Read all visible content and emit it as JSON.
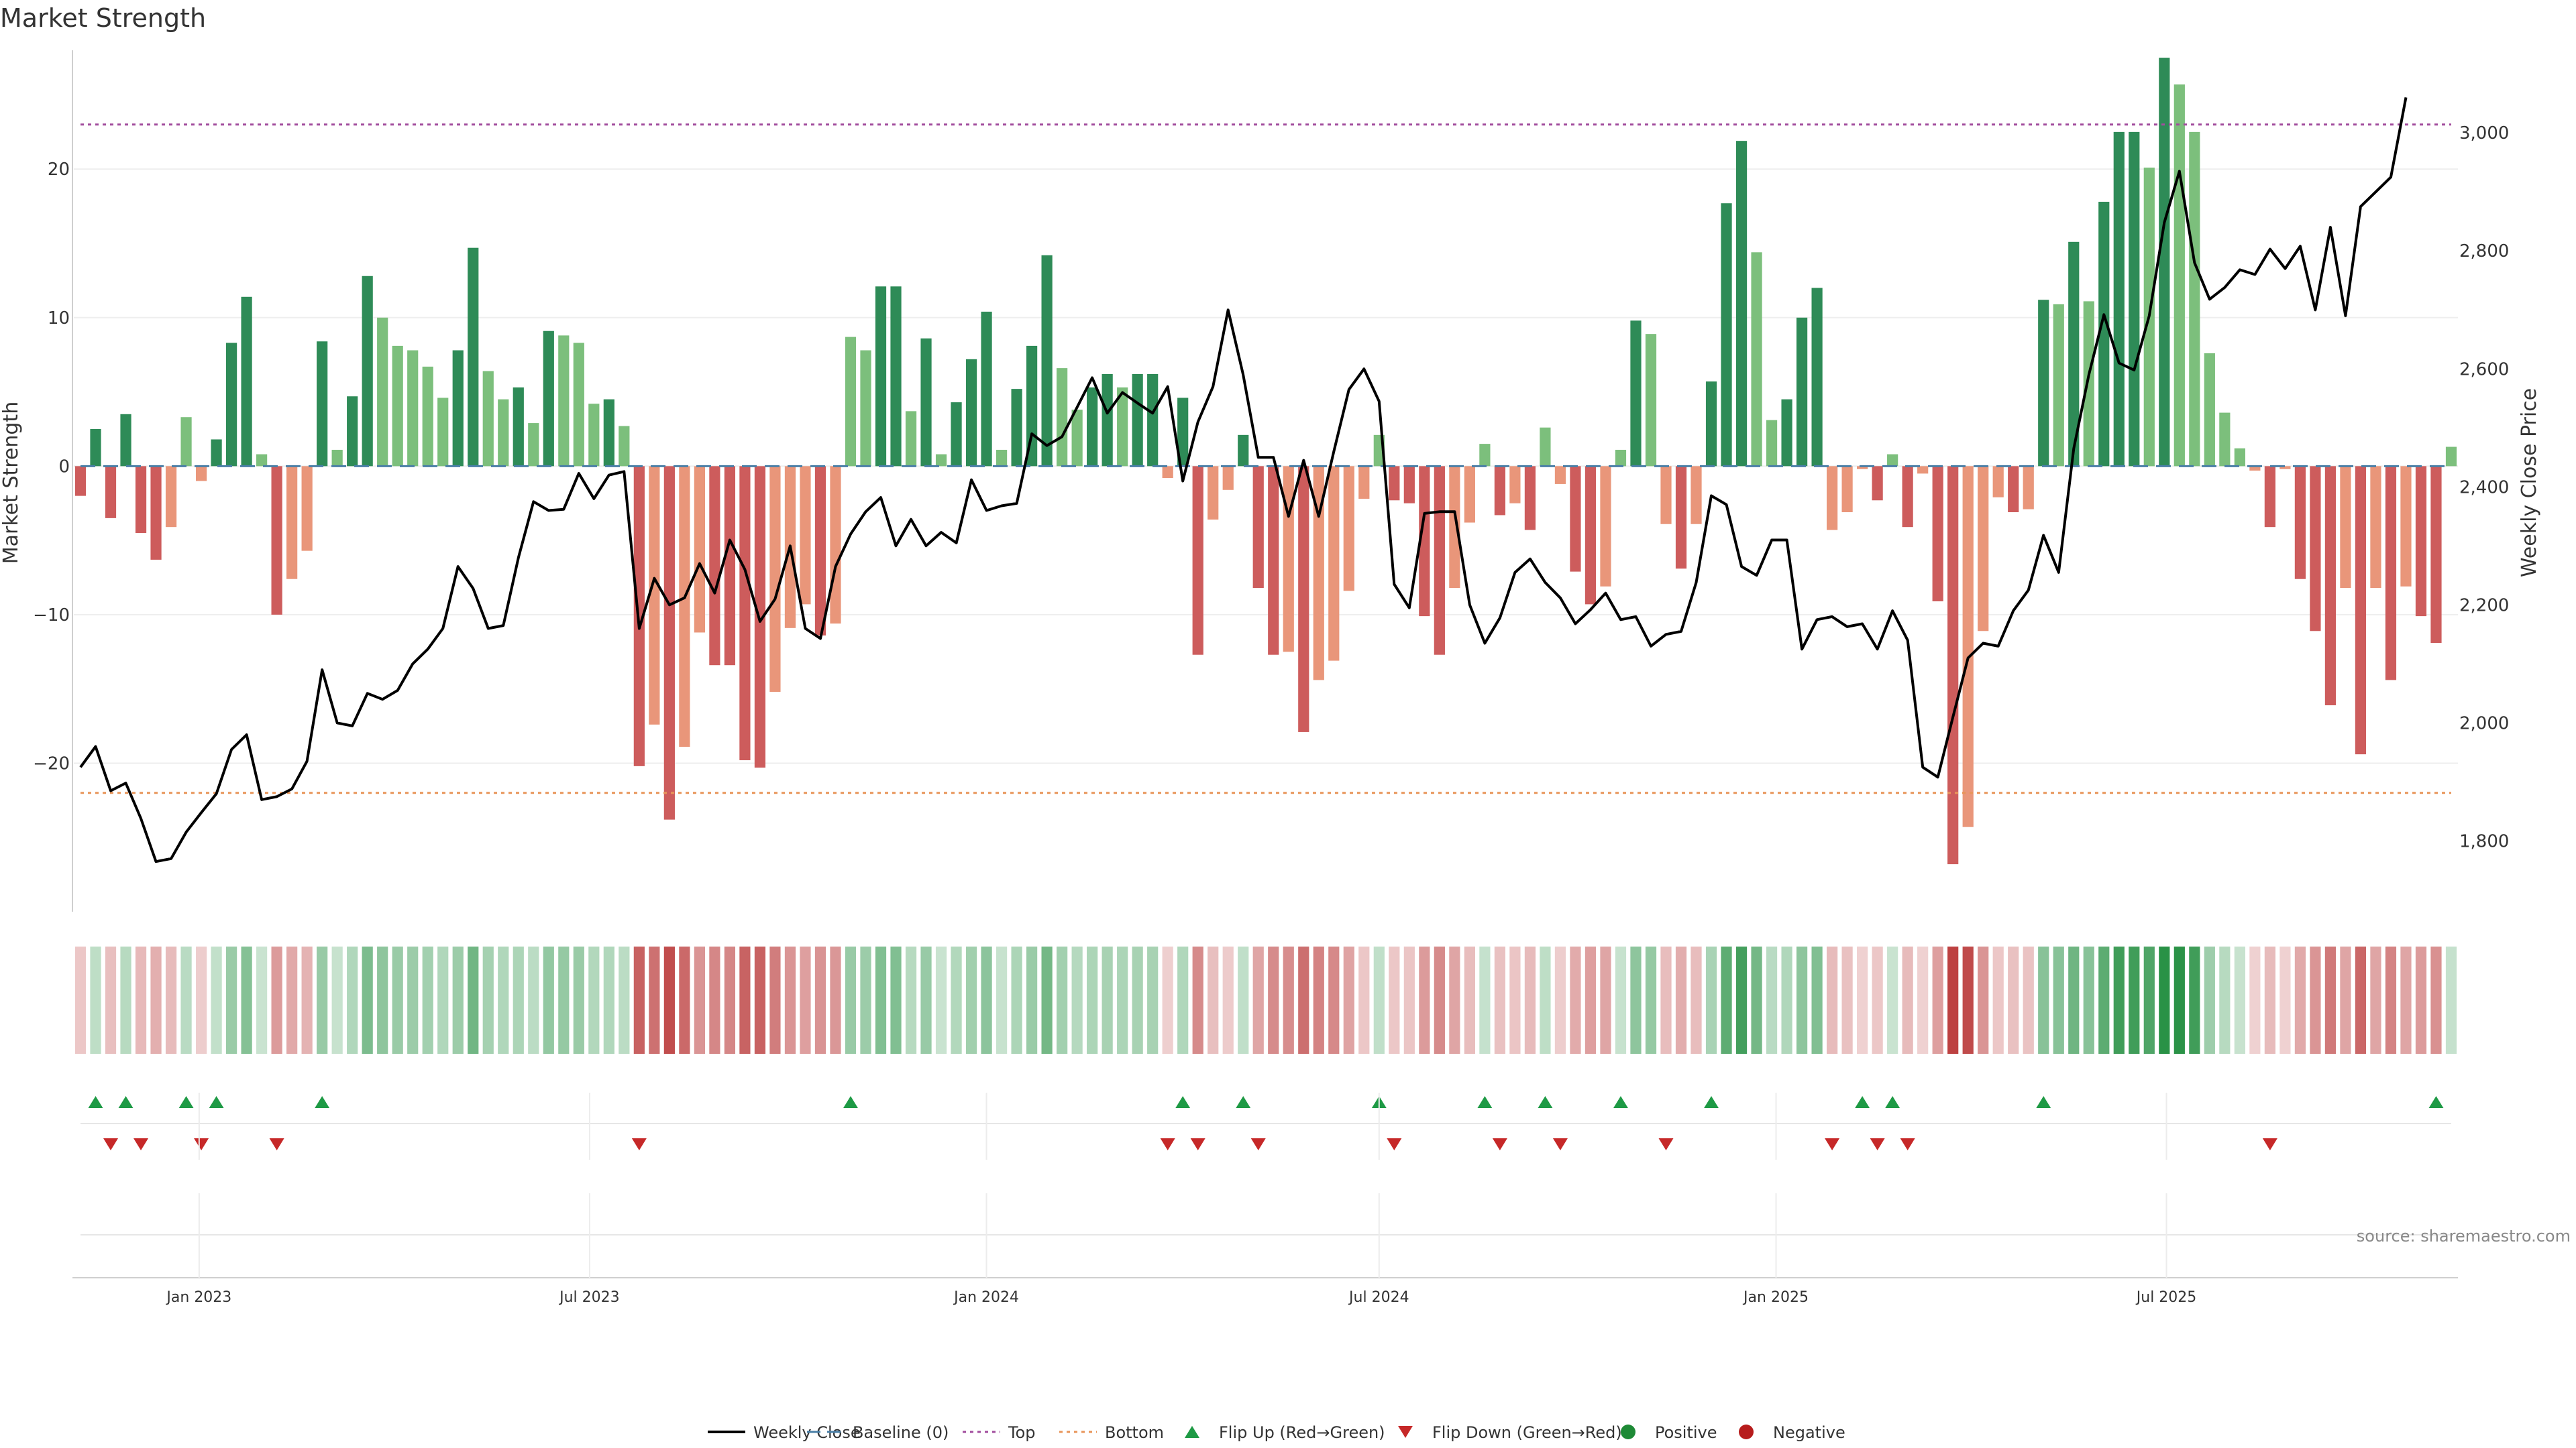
{
  "chart_data": {
    "type": "bar",
    "title": "Market Strength",
    "ylabel_left": "Market Strength",
    "ylabel_right": "Weekly Close Price",
    "ylim_left": [
      -30,
      28
    ],
    "ylim_right": [
      1680,
      3140
    ],
    "yticks_left": [
      20,
      10,
      0,
      -10,
      -20
    ],
    "yticks_right": [
      3000,
      2800,
      2600,
      2400,
      2200,
      2000,
      1800
    ],
    "ytick_labels_right": [
      "3,000",
      "2,800",
      "2,600",
      "2,400",
      "2,200",
      "2,000",
      "1,800"
    ],
    "x_start": "2022-11-07",
    "x_interval": "weekly",
    "xticks": [
      {
        "date": "2023-01-01",
        "label": "Jan 2023"
      },
      {
        "date": "2023-07-01",
        "label": "Jul 2023"
      },
      {
        "date": "2024-01-01",
        "label": "Jan 2024"
      },
      {
        "date": "2024-07-01",
        "label": "Jul 2024"
      },
      {
        "date": "2025-01-01",
        "label": "Jan 2025"
      },
      {
        "date": "2025-07-01",
        "label": "Jul 2025"
      }
    ],
    "top_threshold": 23,
    "bottom_threshold": -22,
    "strength": [
      -2,
      2.5,
      -3.5,
      3.5,
      -4.5,
      -6.3,
      -4.1,
      3.3,
      -1,
      1.8,
      8.3,
      11.4,
      0.8,
      -10,
      -7.6,
      -5.7,
      8.4,
      1.1,
      4.7,
      12.8,
      10,
      8.1,
      7.8,
      6.7,
      4.6,
      7.8,
      14.7,
      6.4,
      4.5,
      5.3,
      2.9,
      9.1,
      8.8,
      8.3,
      4.2,
      4.5,
      2.7,
      -20.2,
      -17.4,
      -23.8,
      -18.9,
      -11.2,
      -13.4,
      -13.4,
      -19.8,
      -20.3,
      -15.2,
      -10.9,
      -9.3,
      -11.4,
      -10.6,
      8.7,
      7.8,
      12.1,
      12.1,
      3.7,
      8.6,
      0.8,
      4.3,
      7.2,
      10.4,
      1.1,
      5.2,
      8.1,
      14.2,
      6.6,
      3.8,
      5.3,
      6.2,
      5.3,
      6.2,
      6.2,
      -0.8,
      4.6,
      -12.7,
      -3.6,
      -1.6,
      2.1,
      -8.2,
      -12.7,
      -12.5,
      -17.9,
      -14.4,
      -13.1,
      -8.4,
      -2.2,
      2.1,
      -2.3,
      -2.5,
      -10.1,
      -12.7,
      -8.2,
      -3.8,
      1.5,
      -3.3,
      -2.5,
      -4.3,
      2.6,
      -1.2,
      -7.1,
      -9.3,
      -8.1,
      1.1,
      9.8,
      8.9,
      -3.9,
      -6.9,
      -3.9,
      5.7,
      17.7,
      21.9,
      14.4,
      3.1,
      4.5,
      10,
      12,
      -4.3,
      -3.1,
      -0.2,
      -2.3,
      0.8,
      -4.1,
      -0.5,
      -9.1,
      -26.8,
      -24.3,
      -11.1,
      -2.1,
      -3.1,
      -2.9,
      11.2,
      10.9,
      15.1,
      11.1,
      17.8,
      22.5,
      22.5,
      20.1,
      27.5,
      25.7,
      22.5,
      7.6,
      3.6,
      1.2,
      -0.3,
      -4.1,
      -0.2,
      -7.6,
      -11.1,
      -16.1,
      -8.2,
      -19.4,
      -8.2,
      -14.4,
      -8.1,
      -10.1,
      -11.9,
      1.3
    ],
    "close": [
      1925,
      1960,
      1885,
      1898,
      1838,
      1765,
      1770,
      1815,
      1848,
      1880,
      1955,
      1980,
      1870,
      1875,
      1888,
      1935,
      2090,
      2000,
      1995,
      2050,
      2040,
      2055,
      2100,
      2125,
      2160,
      2265,
      2228,
      2160,
      2165,
      2280,
      2375,
      2360,
      2362,
      2423,
      2380,
      2420,
      2426,
      2160,
      2245,
      2200,
      2212,
      2270,
      2220,
      2310,
      2260,
      2172,
      2210,
      2300,
      2160,
      2143,
      2265,
      2320,
      2358,
      2382,
      2300,
      2345,
      2300,
      2323,
      2305,
      2412,
      2360,
      2368,
      2372,
      2490,
      2470,
      2485,
      2535,
      2585,
      2525,
      2560,
      2542,
      2525,
      2570,
      2410,
      2510,
      2570,
      2700,
      2590,
      2450,
      2450,
      2350,
      2445,
      2350,
      2460,
      2565,
      2600,
      2545,
      2235,
      2195,
      2355,
      2358,
      2358,
      2200,
      2135,
      2178,
      2255,
      2278,
      2238,
      2212,
      2168,
      2192,
      2220,
      2175,
      2180,
      2130,
      2150,
      2155,
      2238,
      2385,
      2370,
      2265,
      2250,
      2310,
      2310,
      2125,
      2175,
      2180,
      2163,
      2168,
      2125,
      2190,
      2140,
      1925,
      1908,
      2010,
      2110,
      2135,
      2130,
      2190,
      2225,
      2318,
      2255,
      2465,
      2590,
      2692,
      2610,
      2598,
      2690,
      2848,
      2935,
      2780,
      2718,
      2738,
      2768,
      2760,
      2803,
      2770,
      2808,
      2700,
      2840,
      2690,
      2875,
      2900,
      2925,
      3060
    ],
    "flip_up": [
      1,
      3,
      7,
      9,
      16,
      51,
      73,
      77,
      86,
      93,
      97,
      102,
      108,
      118,
      120,
      130,
      156
    ],
    "flip_down": [
      2,
      4,
      8,
      13,
      37,
      72,
      74,
      78,
      87,
      94,
      98,
      105,
      116,
      119,
      121,
      145
    ],
    "source_text": "source: sharemaestro.com",
    "legend": [
      {
        "label": "Weekly Close",
        "kind": "line",
        "color": "#000000"
      },
      {
        "label": "Baseline (0)",
        "kind": "dashed",
        "color": "#4a7fa7"
      },
      {
        "label": "Top",
        "kind": "dotted",
        "color": "#a24d9e"
      },
      {
        "label": "Bottom",
        "kind": "dotted",
        "color": "#e8955a"
      },
      {
        "label": "Flip Up (Red→Green)",
        "kind": "triangle-up",
        "color": "#1e9a45"
      },
      {
        "label": "Flip Down (Green→Red)",
        "kind": "triangle-down",
        "color": "#c62828"
      },
      {
        "label": "Positive",
        "kind": "circle",
        "color": "#1e8a36"
      },
      {
        "label": "Negative",
        "kind": "circle",
        "color": "#b71c1c"
      }
    ]
  }
}
